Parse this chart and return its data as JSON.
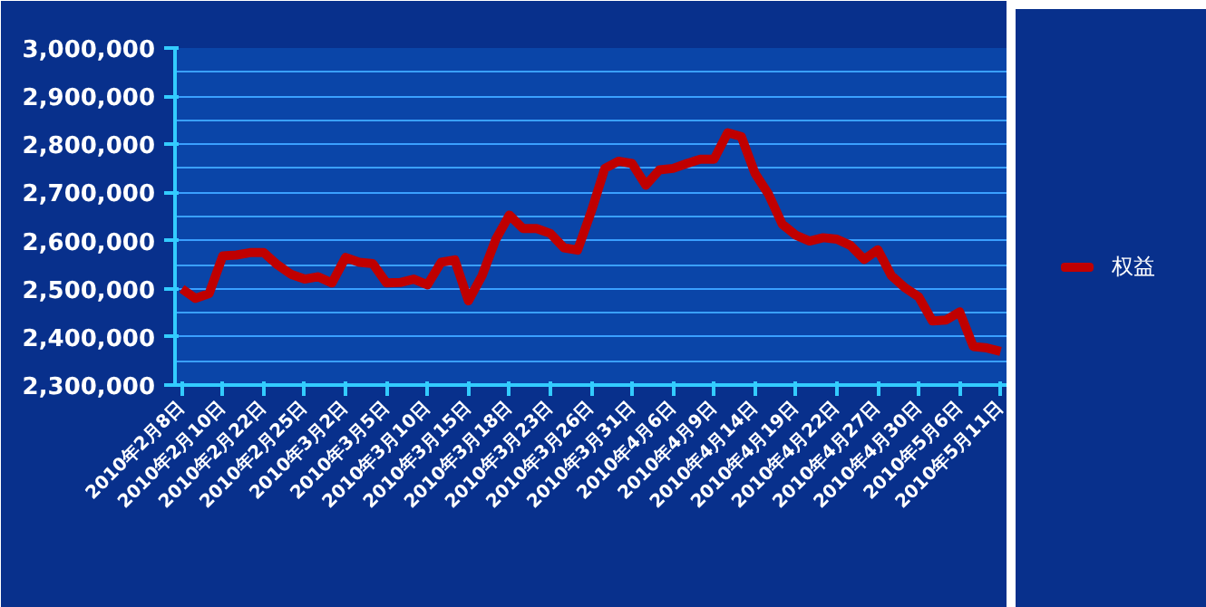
{
  "chart_data": {
    "type": "line",
    "categories": [
      "2010年2月8日",
      null,
      null,
      "2010年2月10日",
      null,
      null,
      "2010年2月22日",
      null,
      null,
      "2010年2月25日",
      null,
      null,
      "2010年3月2日",
      null,
      null,
      "2010年3月5日",
      null,
      null,
      "2010年3月10日",
      null,
      null,
      "2010年3月15日",
      null,
      null,
      "2010年3月18日",
      null,
      null,
      "2010年3月23日",
      null,
      null,
      "2010年3月26日",
      null,
      null,
      "2010年3月31日",
      null,
      null,
      "2010年4月6日",
      null,
      null,
      "2010年4月9日",
      null,
      null,
      "2010年4月14日",
      null,
      null,
      "2010年4月19日",
      null,
      null,
      "2010年4月22日",
      null,
      null,
      "2010年4月27日",
      null,
      null,
      "2010年4月30日",
      null,
      null,
      "2010年5月6日",
      null,
      null,
      "2010年5月11日"
    ],
    "series": [
      {
        "name": "权益",
        "color": "#c00000",
        "values": [
          2500000,
          2480000,
          2490000,
          2568000,
          2570000,
          2575000,
          2575000,
          2550000,
          2530000,
          2520000,
          2525000,
          2512000,
          2565000,
          2555000,
          2552000,
          2512000,
          2513000,
          2520000,
          2508000,
          2555000,
          2560000,
          2475000,
          2527000,
          2602000,
          2653000,
          2625000,
          2625000,
          2615000,
          2585000,
          2580000,
          2660000,
          2750000,
          2765000,
          2760000,
          2715000,
          2747000,
          2750000,
          2760000,
          2769000,
          2769000,
          2824000,
          2816000,
          2740000,
          2696000,
          2634000,
          2611000,
          2599000,
          2606000,
          2603000,
          2590000,
          2561000,
          2581000,
          2527000,
          2502000,
          2483000,
          2433000,
          2435000,
          2452000,
          2380000,
          2377000,
          2370000
        ]
      }
    ],
    "ylim": [
      2300000,
      3000000
    ],
    "yticks": [
      {
        "value": 2300000,
        "label": "2,300,000"
      },
      {
        "value": 2400000,
        "label": "2,400,000"
      },
      {
        "value": 2500000,
        "label": "2,500,000"
      },
      {
        "value": 2600000,
        "label": "2,600,000"
      },
      {
        "value": 2700000,
        "label": "2,700,000"
      },
      {
        "value": 2800000,
        "label": "2,800,000"
      },
      {
        "value": 2900000,
        "label": "2,900,000"
      },
      {
        "value": 3000000,
        "label": "3,000,000"
      }
    ],
    "grid": "y",
    "legend": "right",
    "marker": "none",
    "line_style": "solid"
  }
}
